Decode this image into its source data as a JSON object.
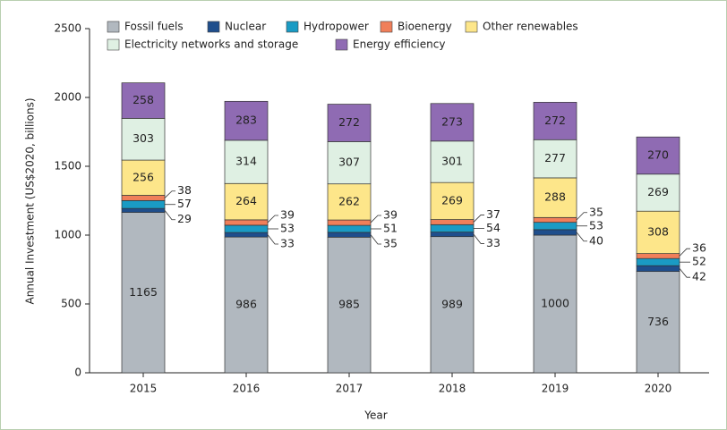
{
  "chart_data": {
    "type": "stacked_bar",
    "x_label": "Year",
    "y_label": "Annual Investment (US$2020, billions)",
    "categories": [
      "2015",
      "2016",
      "2017",
      "2018",
      "2019",
      "2020"
    ],
    "series": [
      {
        "name": "Fossil fuels",
        "color": "#b1b8bf",
        "values": [
          1165,
          986,
          985,
          989,
          1000,
          736
        ]
      },
      {
        "name": "Nuclear",
        "color": "#1f4e8c",
        "values": [
          29,
          33,
          35,
          33,
          40,
          42
        ]
      },
      {
        "name": "Hydropower",
        "color": "#1a9bc4",
        "values": [
          57,
          53,
          51,
          54,
          53,
          52
        ]
      },
      {
        "name": "Bioenergy",
        "color": "#f07f5a",
        "values": [
          38,
          39,
          39,
          37,
          35,
          36
        ]
      },
      {
        "name": "Other renewables",
        "color": "#fde68a",
        "values": [
          256,
          264,
          262,
          269,
          288,
          308
        ]
      },
      {
        "name": "Electricity networks and storage",
        "color": "#dff0e3",
        "values": [
          303,
          314,
          307,
          301,
          277,
          269
        ]
      },
      {
        "name": "Energy efficiency",
        "color": "#8f6bb3",
        "values": [
          258,
          283,
          272,
          273,
          272,
          270
        ]
      }
    ],
    "ylim": [
      0,
      2500
    ],
    "yticks": [
      0,
      500,
      1000,
      1500,
      2000,
      2500
    ]
  }
}
